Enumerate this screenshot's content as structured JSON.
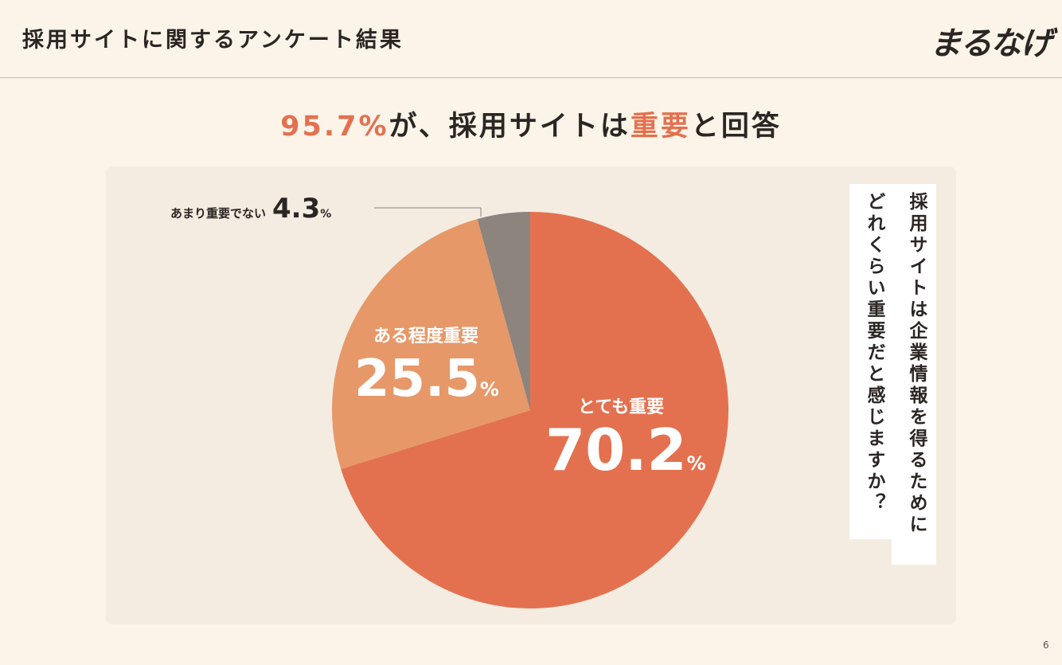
{
  "header": {
    "title": "採用サイトに関するアンケート結果",
    "logo_text": "まるなげ"
  },
  "headline": {
    "value": "95.7%",
    "part1": "が、採用サイトは",
    "highlight": "重要",
    "part2": "と回答"
  },
  "question": {
    "line1": "採用サイトは企業情報を得るために",
    "line2": "どれくらい重要だと感じますか？"
  },
  "colors": {
    "accent": "#e3714f",
    "slice_very": "#e3714f",
    "slice_somewhat": "#e79869",
    "slice_not": "#8c847d"
  },
  "chart_data": {
    "type": "pie",
    "slices": [
      {
        "label": "とても重要",
        "value": 70.2,
        "display": "70.2",
        "color": "#e3714f"
      },
      {
        "label": "ある程度重要",
        "value": 25.5,
        "display": "25.5",
        "color": "#e79869"
      },
      {
        "label": "あまり重要でない",
        "value": 4.3,
        "display": "4.3",
        "color": "#8c847d"
      }
    ],
    "unit": "%"
  },
  "page": {
    "number": "6"
  }
}
